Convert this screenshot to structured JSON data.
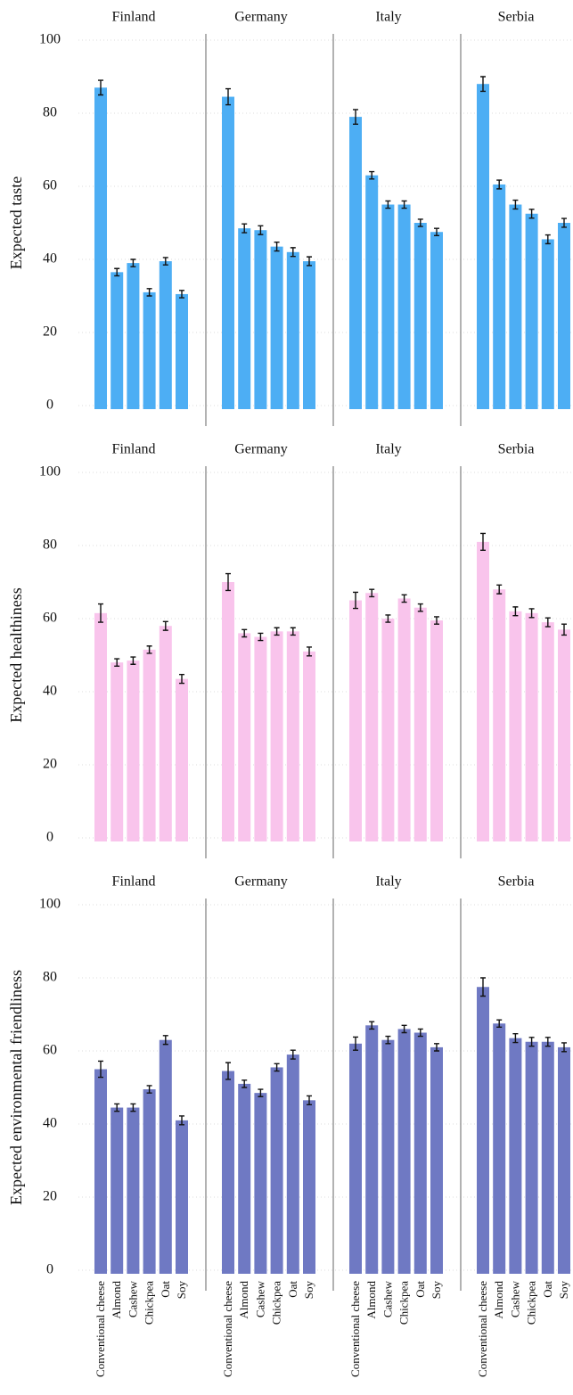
{
  "chart_data": [
    {
      "type": "bar",
      "y_label": "Expected taste",
      "color": "#4daef4",
      "ylim": [
        0,
        100
      ],
      "yticks": [
        0,
        20,
        40,
        60,
        80,
        100
      ],
      "grid": true,
      "panels": [
        {
          "title": "Finland",
          "values": [
            87,
            36.5,
            39,
            31,
            39.5,
            30.5
          ],
          "errors": [
            2,
            1,
            1,
            1,
            1,
            1
          ]
        },
        {
          "title": "Germany",
          "values": [
            84.5,
            48.5,
            48,
            43.5,
            42,
            39.5
          ],
          "errors": [
            2.2,
            1.2,
            1.2,
            1.2,
            1.2,
            1.2
          ]
        },
        {
          "title": "Italy",
          "values": [
            79,
            63,
            55,
            55,
            50,
            47.5
          ],
          "errors": [
            2,
            1,
            1,
            1,
            1,
            1
          ]
        },
        {
          "title": "Serbia",
          "values": [
            88,
            60.5,
            55,
            52.5,
            45.5,
            50
          ],
          "errors": [
            2,
            1.2,
            1.2,
            1.2,
            1.2,
            1.2
          ]
        }
      ]
    },
    {
      "type": "bar",
      "y_label": "Expected healthiness",
      "color": "#f9c4ec",
      "ylim": [
        0,
        100
      ],
      "yticks": [
        0,
        20,
        40,
        60,
        80,
        100
      ],
      "grid": true,
      "panels": [
        {
          "title": "Finland",
          "values": [
            61.5,
            48,
            48.5,
            51.5,
            58,
            43.5
          ],
          "errors": [
            2.5,
            1,
            1,
            1,
            1.2,
            1.2
          ]
        },
        {
          "title": "Germany",
          "values": [
            70,
            56,
            55,
            56.5,
            56.5,
            51
          ],
          "errors": [
            2.3,
            1,
            1,
            1,
            1,
            1.2
          ]
        },
        {
          "title": "Italy",
          "values": [
            65,
            67,
            60,
            65.5,
            63,
            59.5
          ],
          "errors": [
            2.2,
            1,
            1,
            1,
            1,
            1
          ]
        },
        {
          "title": "Serbia",
          "values": [
            81,
            68,
            62,
            61.5,
            59,
            57
          ],
          "errors": [
            2.3,
            1.2,
            1.2,
            1.2,
            1.2,
            1.5
          ]
        }
      ]
    },
    {
      "type": "bar",
      "y_label": "Expected environmental friendliness",
      "color": "#6f79c3",
      "ylim": [
        0,
        100
      ],
      "yticks": [
        0,
        20,
        40,
        60,
        80,
        100
      ],
      "grid": true,
      "panels": [
        {
          "title": "Finland",
          "categories": [
            "Conventional cheese",
            "Almond",
            "Cashew",
            "Chickpea",
            "Oat",
            "Soy"
          ],
          "values": [
            55,
            44.5,
            44.5,
            49.5,
            63,
            41
          ],
          "errors": [
            2.2,
            1,
            1,
            1,
            1.2,
            1.2
          ]
        },
        {
          "title": "Germany",
          "categories": [
            "Conventional cheese",
            "Almond",
            "Cashew",
            "Chickpea",
            "Oat",
            "Soy"
          ],
          "values": [
            54.5,
            51,
            48.5,
            55.5,
            59,
            46.5
          ],
          "errors": [
            2.3,
            1,
            1,
            1,
            1.2,
            1.2
          ]
        },
        {
          "title": "Italy",
          "categories": [
            "Conventional cheese",
            "Almond",
            "Cashew",
            "Chickpea",
            "Oat",
            "Soy"
          ],
          "values": [
            62,
            67,
            63,
            66,
            65,
            61
          ],
          "errors": [
            1.8,
            1,
            1,
            1,
            1,
            1
          ]
        },
        {
          "title": "Serbia",
          "categories": [
            "Conventional cheese",
            "Almond",
            "Cashew",
            "Chickpea",
            "Oat",
            "Soy"
          ],
          "values": [
            77.5,
            67.5,
            63.5,
            62.5,
            62.5,
            61
          ],
          "errors": [
            2.5,
            1,
            1.2,
            1.2,
            1.2,
            1.2
          ]
        }
      ]
    }
  ]
}
